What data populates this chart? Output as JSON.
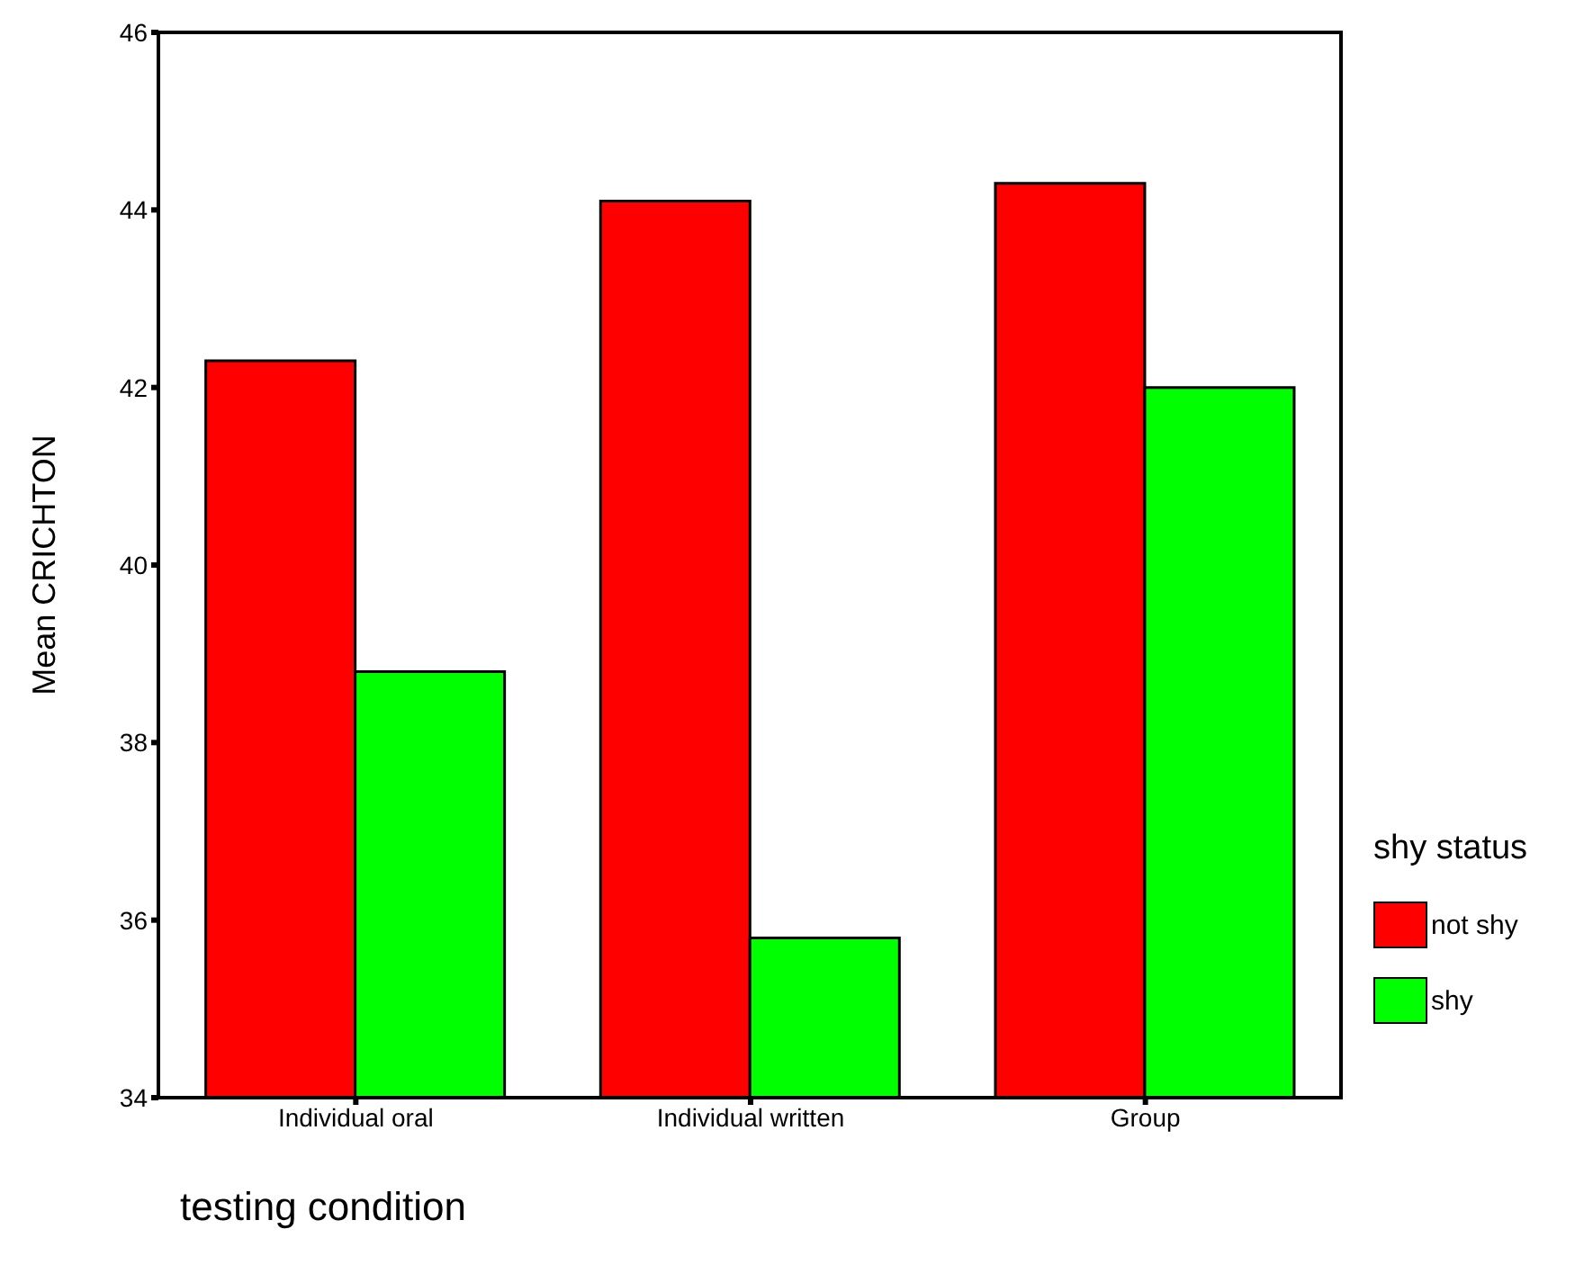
{
  "chart_data": {
    "type": "bar",
    "xlabel": "testing condition",
    "ylabel": "Mean CRICHTON",
    "legend_title": "shy status",
    "categories": [
      "Individual oral",
      "Individual written",
      "Group"
    ],
    "series": [
      {
        "name": "not shy",
        "color": "#ff0000",
        "values": [
          42.3,
          44.1,
          44.3
        ]
      },
      {
        "name": "shy",
        "color": "#00ff00",
        "values": [
          38.8,
          35.8,
          42.0
        ]
      }
    ],
    "ylim": [
      34,
      46
    ],
    "yticks": [
      34,
      36,
      38,
      40,
      42,
      44,
      46
    ],
    "grid": false,
    "legend": "right"
  }
}
